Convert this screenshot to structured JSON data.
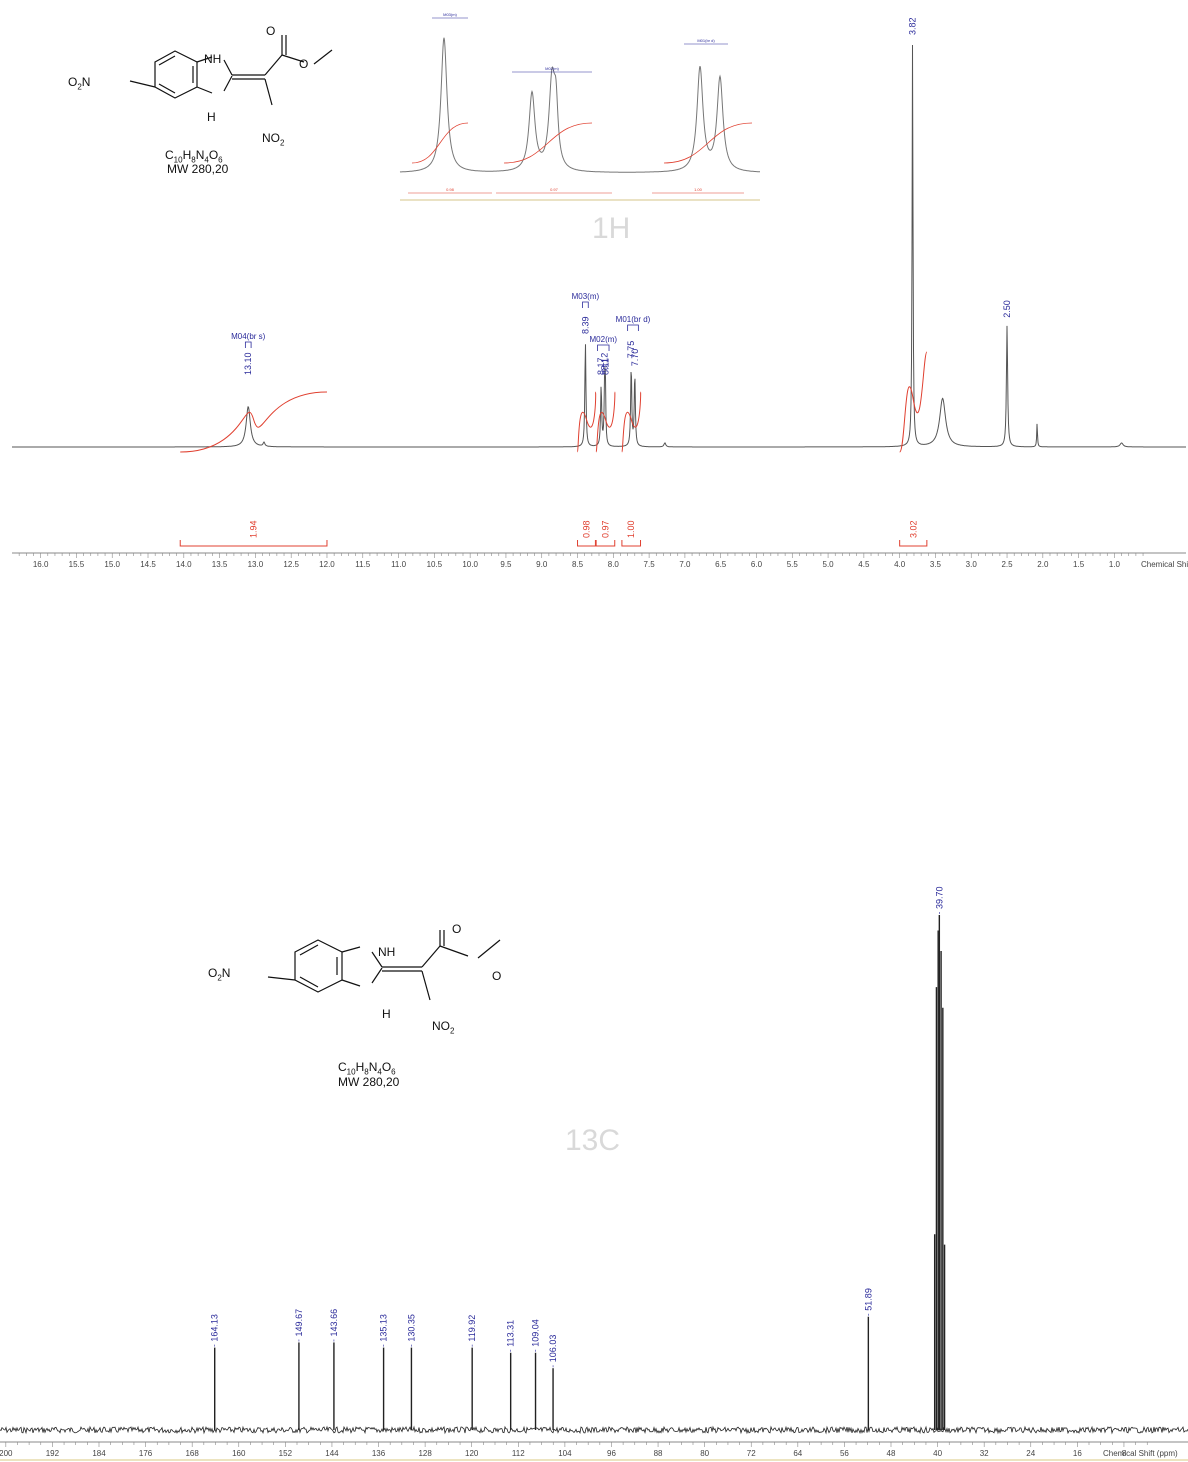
{
  "molecule": {
    "formula_parts": [
      "C",
      "10",
      "H",
      "8",
      "N",
      "4",
      "O",
      "6"
    ],
    "mw": "MW 280,20",
    "labels": {
      "o2n": "O2N",
      "nh": "NH",
      "h": "H",
      "o": "O",
      "no2": "NO2"
    }
  },
  "chart_data": [
    {
      "type": "line",
      "nucleus_label": "1H",
      "xlabel": "Chemical Shift (ppm)",
      "xlim": [
        16.4,
        0.0
      ],
      "ticks": [
        16.0,
        15.5,
        15.0,
        14.5,
        14.0,
        13.5,
        13.0,
        12.5,
        12.0,
        11.5,
        11.0,
        10.5,
        10.0,
        9.5,
        9.0,
        8.5,
        8.0,
        7.5,
        7.0,
        6.5,
        6.0,
        5.5,
        5.0,
        4.5,
        4.0,
        3.5,
        3.0,
        2.5,
        2.0,
        1.5,
        1.0
      ],
      "tick_labels": [
        "16.0",
        "15.5",
        "15.0",
        "14.5",
        "14.0",
        "13.5",
        "13.0",
        "12.5",
        "12.0",
        "11.5",
        "11.0",
        "10.5",
        "10.0",
        "9.5",
        "9.0",
        "8.5",
        "8.0",
        "7.5",
        "7.0",
        "6.5",
        "6.0",
        "5.5",
        "5.0",
        "4.5",
        "4.0",
        "3.5",
        "3.0",
        "2.5",
        "2.0",
        "1.5",
        "1.0"
      ],
      "peaks": [
        {
          "ppm": 13.1,
          "height": 0.1,
          "width": 0.07,
          "label": "13.10"
        },
        {
          "ppm": 12.88,
          "height": 0.01,
          "width": 0.03,
          "label": ""
        },
        {
          "ppm": 8.39,
          "height": 0.26,
          "width": 0.018,
          "label": "8.39"
        },
        {
          "ppm": 8.17,
          "height": 0.15,
          "width": 0.018,
          "label": "8.17"
        },
        {
          "ppm": 8.12,
          "height": 0.17,
          "width": 0.018,
          "label": "8.12"
        },
        {
          "ppm": 8.11,
          "height": 0.1,
          "width": 0.012,
          "label": "8.11"
        },
        {
          "ppm": 7.75,
          "height": 0.2,
          "width": 0.018,
          "label": "7.75"
        },
        {
          "ppm": 7.7,
          "height": 0.18,
          "width": 0.018,
          "label": "7.70"
        },
        {
          "ppm": 7.28,
          "height": 0.01,
          "width": 0.03,
          "label": ""
        },
        {
          "ppm": 3.82,
          "height": 1.0,
          "width": 0.015,
          "label": "3.82"
        },
        {
          "ppm": 3.4,
          "height": 0.12,
          "width": 0.1,
          "label": ""
        },
        {
          "ppm": 2.5,
          "height": 0.3,
          "width": 0.02,
          "label": "2.50"
        },
        {
          "ppm": 2.08,
          "height": 0.06,
          "width": 0.012,
          "label": ""
        },
        {
          "ppm": 0.9,
          "height": 0.01,
          "width": 0.05,
          "label": ""
        }
      ],
      "multiplets": [
        {
          "name": "M04(br s)",
          "ppm_range": [
            13.14,
            13.06
          ]
        },
        {
          "name": "M03(m)",
          "ppm_range": [
            8.43,
            8.35
          ]
        },
        {
          "name": "M02(m)",
          "ppm_range": [
            8.22,
            8.06
          ]
        },
        {
          "name": "M01(br d)",
          "ppm_range": [
            7.8,
            7.65
          ]
        }
      ],
      "integrals": [
        {
          "range": [
            14.05,
            12.0
          ],
          "value": "1.94"
        },
        {
          "range": [
            8.5,
            8.25
          ],
          "value": "0.98"
        },
        {
          "range": [
            8.24,
            7.98
          ],
          "value": "0.97"
        },
        {
          "range": [
            7.88,
            7.62
          ],
          "value": "1.00"
        },
        {
          "range": [
            4.0,
            3.62
          ],
          "value": "3.02"
        }
      ],
      "inset": {
        "x": [
          8.5,
          7.6
        ],
        "header_labels": [
          "M03(m)",
          "M02(m)",
          "M01(br d)"
        ],
        "integral_labels": [
          "0.98",
          "0.97",
          "1.00"
        ]
      }
    },
    {
      "type": "line",
      "nucleus_label": "13C",
      "xlabel": "Chemical Shift (ppm)",
      "xlim": [
        200,
        0
      ],
      "ticks": [
        200,
        192,
        184,
        176,
        168,
        160,
        152,
        144,
        136,
        128,
        120,
        112,
        104,
        96,
        88,
        80,
        72,
        64,
        56,
        48,
        40,
        32,
        24,
        16,
        8
      ],
      "tick_labels": [
        "200",
        "192",
        "184",
        "176",
        "168",
        "160",
        "152",
        "144",
        "136",
        "128",
        "120",
        "112",
        "104",
        "96",
        "88",
        "80",
        "72",
        "64",
        "56",
        "48",
        "40",
        "32",
        "24",
        "16",
        "8"
      ],
      "peaks": [
        {
          "ppm": 164.13,
          "height": 0.16,
          "label": "164.13"
        },
        {
          "ppm": 149.67,
          "height": 0.17,
          "label": "149.67"
        },
        {
          "ppm": 143.66,
          "height": 0.17,
          "label": "143.66"
        },
        {
          "ppm": 135.13,
          "height": 0.16,
          "label": "135.13"
        },
        {
          "ppm": 130.35,
          "height": 0.16,
          "label": "130.35"
        },
        {
          "ppm": 119.92,
          "height": 0.16,
          "label": "119.92"
        },
        {
          "ppm": 113.31,
          "height": 0.15,
          "label": "113.31"
        },
        {
          "ppm": 109.04,
          "height": 0.15,
          "label": "109.04"
        },
        {
          "ppm": 106.03,
          "height": 0.12,
          "label": "106.03"
        },
        {
          "ppm": 51.89,
          "height": 0.22,
          "label": "51.89"
        },
        {
          "ppm": 40.5,
          "height": 0.38,
          "label": ""
        },
        {
          "ppm": 40.2,
          "height": 0.86,
          "label": ""
        },
        {
          "ppm": 39.9,
          "height": 0.97,
          "label": ""
        },
        {
          "ppm": 39.7,
          "height": 1.0,
          "label": "39.70"
        },
        {
          "ppm": 39.4,
          "height": 0.93,
          "label": ""
        },
        {
          "ppm": 39.1,
          "height": 0.82,
          "label": ""
        },
        {
          "ppm": 38.8,
          "height": 0.36,
          "label": ""
        }
      ]
    }
  ]
}
